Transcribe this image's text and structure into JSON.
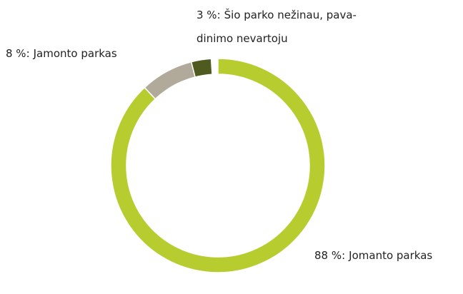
{
  "chart_data": {
    "type": "pie",
    "categories": [
      "Jomanto parkas",
      "Jamonto parkas",
      [
        "Šio parko nežinau, pava-",
        "dinimo nevartoju"
      ]
    ],
    "values": [
      88,
      8,
      3
    ],
    "value_labels": [
      "88 %:",
      "8 %:",
      "3 %:"
    ],
    "colors": [
      "#b7cc2f",
      "#b1aa9a",
      "#4e5a1e"
    ],
    "donut": true
  }
}
